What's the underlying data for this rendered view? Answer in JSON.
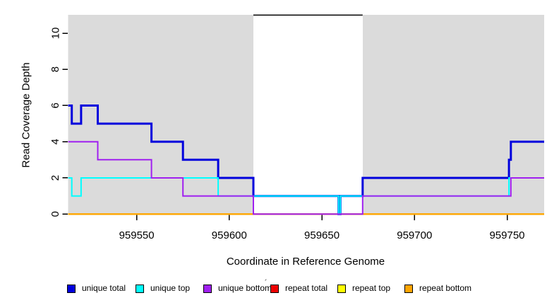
{
  "chart_data": {
    "type": "line",
    "step_interpolation": "step-after",
    "title": "",
    "xlabel": "Coordinate in Reference Genome",
    "ylabel": "Read Coverage Depth",
    "xlim": [
      959513,
      959770
    ],
    "ylim": [
      0,
      11
    ],
    "xticks": [
      959550,
      959600,
      959650,
      959700,
      959750
    ],
    "yticks": [
      0,
      2,
      4,
      6,
      8,
      10
    ],
    "grid": false,
    "legend_position": "bottom",
    "page_background_color": "#ffffff",
    "plot_background_color": "#dbdbdb",
    "repeat_region": {
      "x_start": 959613,
      "x_end": 959672,
      "fill": "#ffffff",
      "top_line_depth": 11,
      "top_line_color": "#000000"
    },
    "series": [
      {
        "name": "unique total",
        "color": "#0000dd",
        "line_width": 3,
        "points": [
          [
            959513,
            6
          ],
          [
            959515,
            5
          ],
          [
            959520,
            6
          ],
          [
            959529,
            5
          ],
          [
            959558,
            4
          ],
          [
            959575,
            3
          ],
          [
            959594,
            2
          ],
          [
            959613,
            1
          ],
          [
            959659,
            0
          ],
          [
            959660,
            1
          ],
          [
            959672,
            2
          ],
          [
            959751,
            3
          ],
          [
            959752,
            4
          ],
          [
            959770,
            4
          ]
        ]
      },
      {
        "name": "unique top",
        "color": "#00ffff",
        "line_width": 2,
        "points": [
          [
            959513,
            2
          ],
          [
            959515,
            1
          ],
          [
            959520,
            2
          ],
          [
            959594,
            1
          ],
          [
            959659,
            0
          ],
          [
            959660,
            1
          ],
          [
            959751,
            2
          ],
          [
            959770,
            2
          ]
        ]
      },
      {
        "name": "unique bottom",
        "color": "#a020f0",
        "line_width": 2,
        "points": [
          [
            959513,
            4
          ],
          [
            959529,
            3
          ],
          [
            959558,
            2
          ],
          [
            959575,
            1
          ],
          [
            959613,
            0
          ],
          [
            959672,
            1
          ],
          [
            959752,
            2
          ],
          [
            959770,
            2
          ]
        ]
      },
      {
        "name": "repeat total",
        "color": "#ee0000",
        "line_width": 2,
        "points": [
          [
            959513,
            0
          ],
          [
            959770,
            0
          ]
        ]
      },
      {
        "name": "repeat top",
        "color": "#ffff00",
        "line_width": 2,
        "points": [
          [
            959513,
            0
          ],
          [
            959770,
            0
          ]
        ]
      },
      {
        "name": "repeat bottom",
        "color": "#ffa500",
        "line_width": 2,
        "points": [
          [
            959513,
            0
          ],
          [
            959770,
            0
          ]
        ]
      }
    ],
    "legend_artifact": "´"
  }
}
